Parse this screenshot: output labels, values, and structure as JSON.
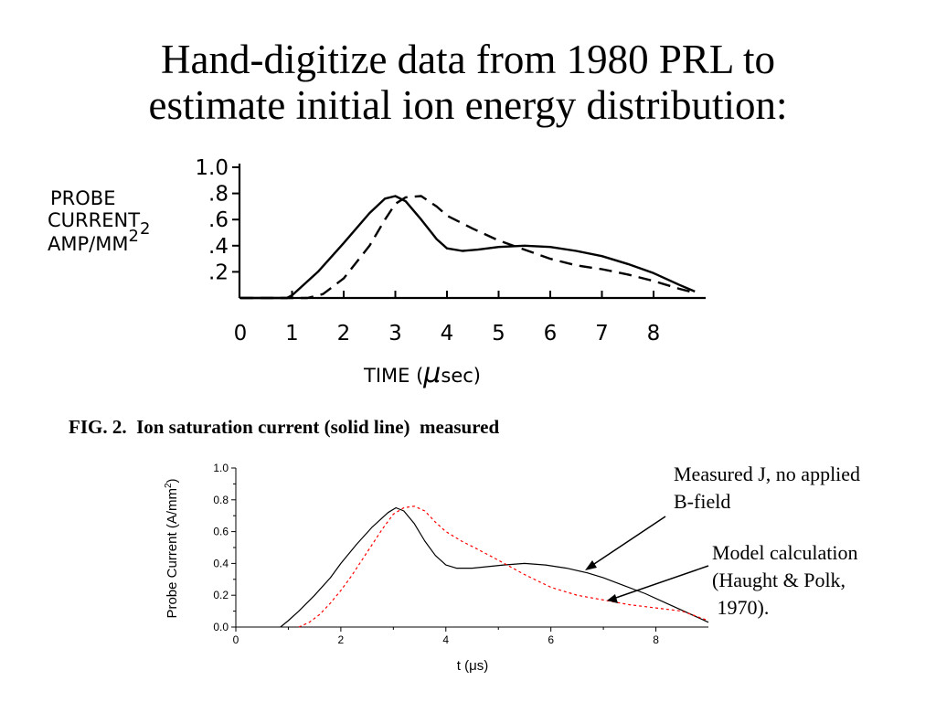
{
  "slide": {
    "title_line1": "Hand-digitize data from 1980 PRL to",
    "title_line2": "estimate initial ion energy distribution:"
  },
  "scan": {
    "ylabel_lines": [
      "PROBE",
      "CURRENT",
      "AMP/MM"
    ],
    "ylabel_sub": "2",
    "ylabel_sup": "2",
    "y_ticks": [
      "1.0",
      ".8",
      ".6",
      ".4",
      ".2"
    ],
    "x_ticks": [
      "0",
      "1",
      "2",
      "3",
      "4",
      "5",
      "6",
      "7",
      "8"
    ],
    "xlabel_prefix": "TIME (",
    "xlabel_mu": "μ",
    "xlabel_suffix": "sec)",
    "caption": "FIG. 2.  Ion saturation current (solid line)  measured"
  },
  "chart_data": [
    {
      "type": "line",
      "source": "scanned figure",
      "x_range": [
        0,
        9
      ],
      "y_range": [
        0,
        1.0
      ],
      "xlabel": "TIME ( μsec)",
      "ylabel": "PROBE CURRENT AMP/MM2",
      "series": [
        {
          "style": "solid",
          "color": "#000000",
          "x": [
            0,
            0.9,
            1.0,
            1.5,
            2.0,
            2.5,
            2.8,
            3.0,
            3.2,
            3.5,
            3.8,
            4.0,
            4.3,
            4.6,
            5.0,
            5.5,
            6.0,
            6.5,
            7.0,
            7.5,
            8.0,
            8.5,
            8.8
          ],
          "y": [
            0,
            0,
            0.02,
            0.2,
            0.42,
            0.65,
            0.76,
            0.78,
            0.74,
            0.6,
            0.45,
            0.38,
            0.36,
            0.37,
            0.39,
            0.4,
            0.39,
            0.36,
            0.32,
            0.26,
            0.19,
            0.1,
            0.05
          ]
        },
        {
          "style": "dashed",
          "color": "#000000",
          "x": [
            0,
            1.3,
            1.6,
            2.0,
            2.5,
            2.8,
            3.0,
            3.2,
            3.5,
            3.8,
            4.0,
            4.5,
            5.0,
            5.5,
            6.0,
            6.5,
            7.0,
            7.5,
            8.0,
            8.5,
            8.8
          ],
          "y": [
            0,
            0,
            0.03,
            0.15,
            0.4,
            0.6,
            0.72,
            0.77,
            0.78,
            0.7,
            0.63,
            0.53,
            0.44,
            0.37,
            0.3,
            0.25,
            0.22,
            0.18,
            0.13,
            0.07,
            0.04
          ]
        }
      ]
    },
    {
      "type": "line",
      "source": "digitized replot",
      "xlim": [
        0,
        9
      ],
      "ylim": [
        0,
        1.0
      ],
      "x_ticks": [
        "0",
        "2",
        "4",
        "6",
        "8"
      ],
      "y_ticks": [
        "0.0",
        "0.2",
        "0.4",
        "0.6",
        "0.8",
        "1.0"
      ],
      "xlabel_prefix": "t (",
      "xlabel_mu": "μ",
      "xlabel_suffix": "s)",
      "ylabel_main": "Probe Current (A/mm",
      "ylabel_sup": "2",
      "ylabel_end": ")",
      "series": [
        {
          "name": "Measured J, no applied B-field",
          "style": "solid",
          "color": "#000000",
          "x": [
            0.85,
            1.0,
            1.2,
            1.5,
            1.8,
            2.0,
            2.3,
            2.6,
            2.9,
            3.05,
            3.2,
            3.4,
            3.6,
            3.8,
            4.0,
            4.2,
            4.5,
            4.8,
            5.1,
            5.5,
            5.9,
            6.3,
            6.7,
            7.0,
            7.4,
            7.8,
            8.2,
            8.6,
            9.0
          ],
          "y": [
            0,
            0.04,
            0.1,
            0.2,
            0.31,
            0.4,
            0.52,
            0.63,
            0.72,
            0.75,
            0.73,
            0.65,
            0.54,
            0.45,
            0.39,
            0.37,
            0.37,
            0.38,
            0.39,
            0.4,
            0.39,
            0.37,
            0.34,
            0.31,
            0.26,
            0.21,
            0.15,
            0.09,
            0.03
          ]
        },
        {
          "name": "Model calculation (Haught & Polk, 1970).",
          "style": "dashed",
          "color": "#ff0000",
          "x": [
            1.2,
            1.4,
            1.6,
            1.8,
            2.0,
            2.2,
            2.5,
            2.8,
            3.0,
            3.2,
            3.4,
            3.6,
            3.8,
            4.0,
            4.3,
            4.6,
            5.0,
            5.5,
            6.0,
            6.5,
            7.0,
            7.5,
            8.0,
            8.5,
            9.0
          ],
          "y": [
            0,
            0.03,
            0.08,
            0.15,
            0.23,
            0.32,
            0.47,
            0.62,
            0.71,
            0.75,
            0.76,
            0.73,
            0.66,
            0.6,
            0.54,
            0.49,
            0.42,
            0.33,
            0.25,
            0.2,
            0.17,
            0.14,
            0.12,
            0.1,
            0.04
          ]
        }
      ]
    }
  ],
  "annotations": {
    "measured_line1": "Measured J, no applied",
    "measured_line2": "B-field",
    "model_line1": "Model calculation",
    "model_line2": "(Haught & Polk,",
    "model_line3": " 1970)."
  }
}
